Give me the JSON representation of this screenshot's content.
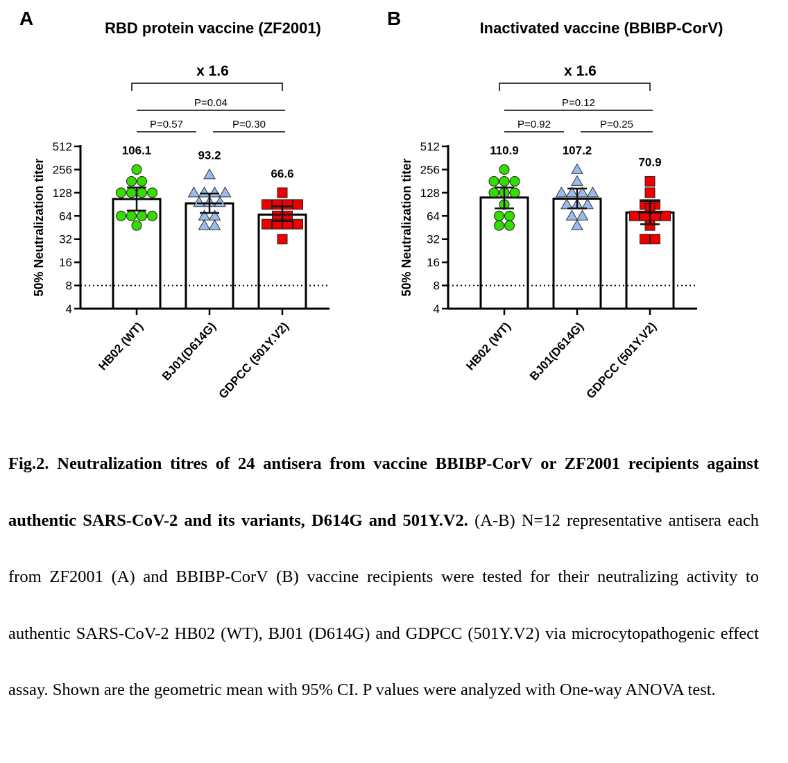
{
  "chart_data": [
    {
      "panel_label": "A",
      "type": "bar",
      "title": "RBD protein vaccine (ZF2001)",
      "ylabel": "50% Neutralization titer",
      "yscale": "log2",
      "ylim": [
        4,
        512
      ],
      "yticks": [
        4,
        8,
        16,
        32,
        64,
        128,
        256,
        512
      ],
      "threshold": 8,
      "categories": [
        "HB02 (WT)",
        "BJ01(D614G)",
        "GDPCC (501Y.V2)"
      ],
      "values": [
        106.1,
        93.2,
        66.6
      ],
      "value_labels": [
        "106.1",
        "93.2",
        "66.6"
      ],
      "ci95": [
        [
          75,
          150
        ],
        [
          70,
          125
        ],
        [
          55,
          85
        ]
      ],
      "points": [
        [
          256,
          180,
          180,
          128,
          128,
          128,
          128,
          64,
          64,
          64,
          64,
          48
        ],
        [
          220,
          128,
          128,
          128,
          128,
          96,
          96,
          96,
          64,
          64,
          48,
          48
        ],
        [
          128,
          90,
          90,
          90,
          90,
          64,
          64,
          50,
          50,
          50,
          50,
          32
        ]
      ],
      "markers": [
        "circle",
        "triangle",
        "square"
      ],
      "colors": [
        "#33dd00",
        "#99bbee",
        "#ee0000"
      ],
      "fold_change": "x 1.6",
      "comparisons": [
        {
          "label": "P=0.04",
          "from": 0,
          "to": 2
        },
        {
          "label": "P=0.57",
          "from": 0,
          "to": 1
        },
        {
          "label": "P=0.30",
          "from": 1,
          "to": 2
        }
      ]
    },
    {
      "panel_label": "B",
      "type": "bar",
      "title": "Inactivated vaccine (BBIBP-CorV)",
      "ylabel": "50% Neutralization titer",
      "yscale": "log2",
      "ylim": [
        4,
        512
      ],
      "yticks": [
        4,
        8,
        16,
        32,
        64,
        128,
        256,
        512
      ],
      "threshold": 8,
      "categories": [
        "HB02 (WT)",
        "BJ01(D614G)",
        "GDPCC (501Y.V2)"
      ],
      "values": [
        110.9,
        107.2,
        70.9
      ],
      "value_labels": [
        "110.9",
        "107.2",
        "70.9"
      ],
      "ci95": [
        [
          80,
          150
        ],
        [
          80,
          145
        ],
        [
          50,
          100
        ]
      ],
      "points": [
        [
          256,
          180,
          180,
          180,
          128,
          128,
          128,
          90,
          64,
          64,
          48,
          48
        ],
        [
          256,
          180,
          128,
          128,
          128,
          128,
          90,
          90,
          90,
          64,
          64,
          48
        ],
        [
          180,
          128,
          90,
          90,
          80,
          64,
          64,
          64,
          64,
          48,
          32,
          32
        ]
      ],
      "markers": [
        "circle",
        "triangle",
        "square"
      ],
      "colors": [
        "#33dd00",
        "#99bbee",
        "#ee0000"
      ],
      "fold_change": "x 1.6",
      "comparisons": [
        {
          "label": "P=0.12",
          "from": 0,
          "to": 2
        },
        {
          "label": "P=0.92",
          "from": 0,
          "to": 1
        },
        {
          "label": "P=0.25",
          "from": 1,
          "to": 2
        }
      ]
    }
  ],
  "caption": {
    "bold": "Fig.2. Neutralization titres of 24 antisera from vaccine BBIBP-CorV or ZF2001 recipients against authentic SARS-CoV-2 and its variants, D614G and 501Y.V2.",
    "text": " (A-B) N=12 representative antisera each from ZF2001 (A) and BBIBP-CorV (B) vaccine recipients were tested for their neutralizing activity to authentic SARS-CoV-2 HB02 (WT), BJ01 (D614G) and GDPCC (501Y.V2) via microcytopathogenic effect assay. Shown are the geometric mean with 95% CI. P values were analyzed with One-way ANOVA test."
  }
}
